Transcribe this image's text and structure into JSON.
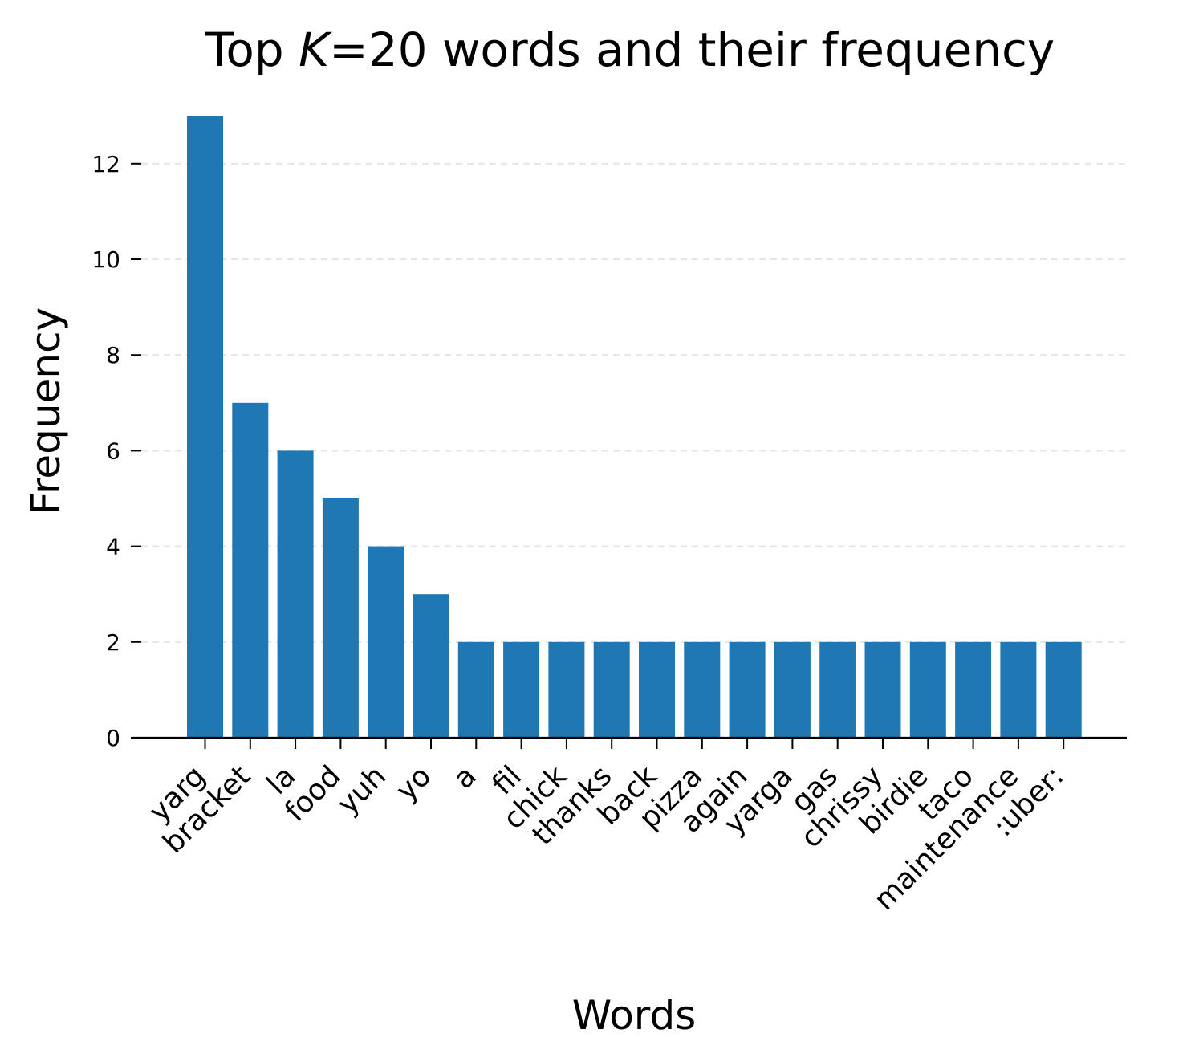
{
  "chart_data": {
    "type": "bar",
    "title_prefix": "Top ",
    "title_var": "K",
    "title_suffix": "=20 words and their frequency",
    "xlabel": "Words",
    "ylabel": "Frequency",
    "categories": [
      "yarg",
      "bracket",
      "la",
      "food",
      "yuh",
      "yo",
      "a",
      "fil",
      "chick",
      "thanks",
      "back",
      "pizza",
      "again",
      "yarga",
      "gas",
      "chrissy",
      "birdie",
      "taco",
      "maintenance",
      ":uber:"
    ],
    "values": [
      13,
      7,
      6,
      5,
      4,
      3,
      2,
      2,
      2,
      2,
      2,
      2,
      2,
      2,
      2,
      2,
      2,
      2,
      2,
      2
    ],
    "ylim": [
      0,
      13
    ],
    "yticks": [
      0,
      2,
      4,
      6,
      8,
      10,
      12
    ],
    "grid": "y-dashed",
    "bar_color": "#1f77b4",
    "grid_color": "#e6e6e6"
  }
}
